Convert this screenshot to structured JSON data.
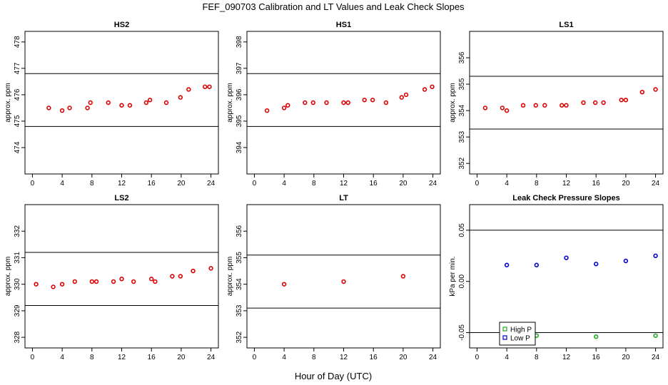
{
  "chart_data": {
    "title": "FEF_090703  Calibration and LT Values and Leak Check Slopes",
    "xlabel": "Hour of Day (UTC)",
    "panels": [
      {
        "id": "hs2",
        "type": "scatter",
        "title": "HS2",
        "ylabel": "approx. ppm",
        "xlim": [
          -1,
          25
        ],
        "ylim": [
          473.0,
          478.4
        ],
        "xticks": [
          0,
          4,
          8,
          12,
          16,
          20,
          24
        ],
        "yticks": [
          474,
          475,
          476,
          477,
          478
        ],
        "hlines": [
          476.8,
          474.8
        ],
        "series": [
          {
            "name": "HS2",
            "color": "#dd0000",
            "x": [
              2.2,
              4.0,
              5.0,
              7.4,
              7.8,
              10.2,
              12.0,
              13.1,
              15.3,
              15.8,
              18.0,
              19.9,
              21.0,
              23.2,
              23.8
            ],
            "y": [
              475.5,
              475.4,
              475.5,
              475.5,
              475.7,
              475.7,
              475.6,
              475.6,
              475.7,
              475.8,
              475.7,
              475.9,
              476.2,
              476.3,
              476.3
            ]
          }
        ]
      },
      {
        "id": "hs1",
        "type": "scatter",
        "title": "HS1",
        "ylabel": "approx. ppm",
        "xlim": [
          -1,
          25
        ],
        "ylim": [
          393.0,
          398.4
        ],
        "xticks": [
          0,
          4,
          8,
          12,
          16,
          20,
          24
        ],
        "yticks": [
          394,
          395,
          396,
          397,
          398
        ],
        "hlines": [
          396.8,
          394.8
        ],
        "series": [
          {
            "name": "HS1",
            "color": "#dd0000",
            "x": [
              1.7,
              4.0,
              4.5,
              6.8,
              7.9,
              9.7,
              12.0,
              12.6,
              14.8,
              15.9,
              17.7,
              19.8,
              20.4,
              22.9,
              23.9
            ],
            "y": [
              395.4,
              395.5,
              395.6,
              395.7,
              395.7,
              395.7,
              395.7,
              395.7,
              395.8,
              395.8,
              395.7,
              395.9,
              396.0,
              396.2,
              396.3
            ]
          }
        ]
      },
      {
        "id": "ls1",
        "type": "scatter",
        "title": "LS1",
        "ylabel": "approx. ppm",
        "xlim": [
          -1,
          25
        ],
        "ylim": [
          351.6,
          357.0
        ],
        "xticks": [
          0,
          4,
          8,
          12,
          16,
          20,
          24
        ],
        "yticks": [
          352,
          353,
          354,
          355,
          356
        ],
        "hlines": [
          355.3,
          353.3
        ],
        "series": [
          {
            "name": "LS1",
            "color": "#dd0000",
            "x": [
              1.1,
              3.4,
              4.0,
              6.2,
              7.9,
              9.1,
              11.4,
              12.0,
              14.3,
              15.9,
              17.0,
              19.4,
              20.0,
              22.2,
              24.0
            ],
            "y": [
              354.1,
              354.1,
              354.0,
              354.2,
              354.2,
              354.2,
              354.2,
              354.2,
              354.3,
              354.3,
              354.3,
              354.4,
              354.4,
              354.7,
              354.8
            ]
          }
        ]
      },
      {
        "id": "ls2",
        "type": "scatter",
        "title": "LS2",
        "ylabel": "approx. ppm",
        "xlim": [
          -1,
          25
        ],
        "ylim": [
          327.6,
          333.0
        ],
        "xticks": [
          0,
          4,
          8,
          12,
          16,
          20,
          24
        ],
        "yticks": [
          328,
          329,
          330,
          331,
          332
        ],
        "hlines": [
          331.2,
          329.2
        ],
        "series": [
          {
            "name": "LS2",
            "color": "#dd0000",
            "x": [
              0.5,
              2.8,
              4.0,
              5.7,
              8.0,
              8.6,
              10.9,
              12.0,
              13.6,
              16.0,
              16.5,
              18.8,
              19.9,
              21.6,
              24.0
            ],
            "y": [
              330.0,
              329.9,
              330.0,
              330.1,
              330.1,
              330.1,
              330.1,
              330.2,
              330.1,
              330.2,
              330.1,
              330.3,
              330.3,
              330.5,
              330.6
            ]
          }
        ]
      },
      {
        "id": "lt",
        "type": "scatter",
        "title": "LT",
        "ylabel": "approx. ppm",
        "xlim": [
          -1,
          25
        ],
        "ylim": [
          351.6,
          357.0
        ],
        "xticks": [
          0,
          4,
          8,
          12,
          16,
          20,
          24
        ],
        "yticks": [
          352,
          353,
          354,
          355,
          356
        ],
        "hlines": [
          355.1,
          353.1
        ],
        "series": [
          {
            "name": "LT",
            "color": "#dd0000",
            "x": [
              4.0,
              12.0,
              20.0
            ],
            "y": [
              354.0,
              354.1,
              354.3
            ]
          }
        ]
      },
      {
        "id": "leak",
        "type": "scatter",
        "title": "Leak Check Pressure Slopes",
        "ylabel": "kPa per min.",
        "xlim": [
          -1,
          25
        ],
        "ylim": [
          -0.065,
          0.075
        ],
        "xticks": [
          0,
          4,
          8,
          12,
          16,
          20,
          24
        ],
        "yticks": [
          -0.05,
          0.0,
          0.05
        ],
        "ytick_labels": [
          "-0.05",
          "0.00",
          "0.05"
        ],
        "hlines": [
          0.05,
          -0.05
        ],
        "series": [
          {
            "name": "High P",
            "color": "#22aa22",
            "x": [
              8,
              16,
              24
            ],
            "y": [
              -0.053,
              -0.054,
              -0.053
            ]
          },
          {
            "name": "Low P",
            "color": "#0000cc",
            "x": [
              4,
              8,
              12,
              16,
              20,
              24
            ],
            "y": [
              0.016,
              0.016,
              0.023,
              0.017,
              0.02,
              0.025
            ]
          }
        ],
        "legend": {
          "position": "bottom-left",
          "entries": [
            "High P",
            "Low P"
          ]
        }
      }
    ]
  }
}
